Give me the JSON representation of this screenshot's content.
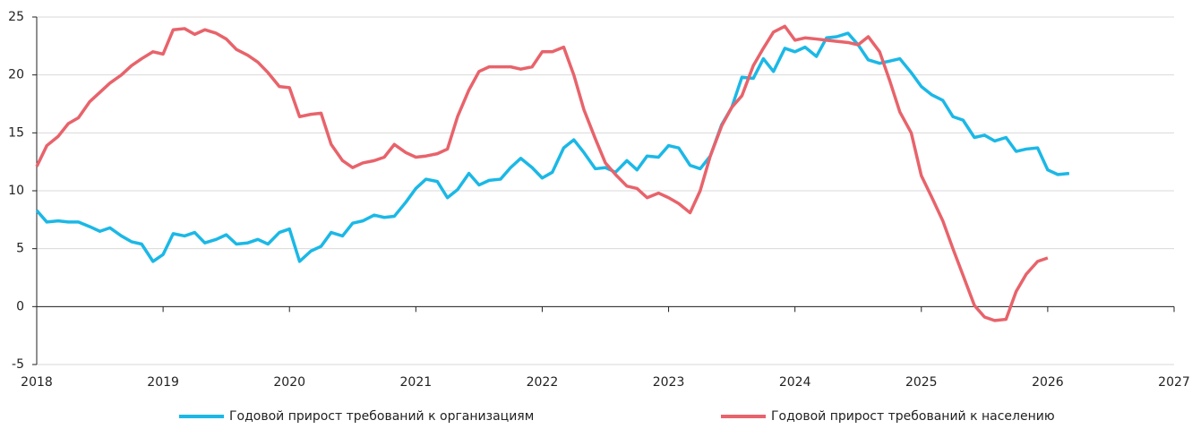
{
  "chart_data": {
    "type": "line",
    "xlim": [
      2018,
      2027
    ],
    "xticks": [
      2018,
      2019,
      2020,
      2021,
      2022,
      2023,
      2024,
      2025,
      2026,
      2027
    ],
    "ylim": [
      -5,
      25
    ],
    "yticks": [
      -5,
      0,
      5,
      10,
      15,
      20,
      25
    ],
    "grid": true,
    "legend": "bottom",
    "series": [
      {
        "name": "Годовой прирост требований к организациям",
        "color": "#1bb8e6",
        "x": [
          2018,
          2018.08,
          2018.17,
          2018.25,
          2018.33,
          2018.42,
          2018.5,
          2018.58,
          2018.67,
          2018.75,
          2018.83,
          2018.92,
          2019,
          2019.08,
          2019.17,
          2019.25,
          2019.33,
          2019.42,
          2019.5,
          2019.58,
          2019.67,
          2019.75,
          2019.83,
          2019.92,
          2020,
          2020.08,
          2020.17,
          2020.25,
          2020.33,
          2020.42,
          2020.5,
          2020.58,
          2020.67,
          2020.75,
          2020.83,
          2020.92,
          2021,
          2021.08,
          2021.17,
          2021.25,
          2021.33,
          2021.42,
          2021.5,
          2021.58,
          2021.67,
          2021.75,
          2021.83,
          2021.92,
          2022,
          2022.08,
          2022.17,
          2022.25,
          2022.33,
          2022.42,
          2022.5,
          2022.58,
          2022.67,
          2022.75,
          2022.83,
          2022.92,
          2023,
          2023.08,
          2023.17,
          2023.25,
          2023.33,
          2023.42,
          2023.5,
          2023.58,
          2023.67,
          2023.75,
          2023.83,
          2023.92,
          2024,
          2024.08,
          2024.17,
          2024.25,
          2024.33,
          2024.42,
          2024.5,
          2024.58,
          2024.67,
          2024.75,
          2024.83,
          2024.92,
          2025,
          2025.08,
          2025.17,
          2025.25,
          2025.33,
          2025.42,
          2025.5,
          2025.58,
          2025.67,
          2025.75,
          2025.83,
          2025.92,
          2026,
          2026.08,
          2026.17
        ],
        "values": [
          8.3,
          7.3,
          7.4,
          7.3,
          7.3,
          6.9,
          6.5,
          6.8,
          6.1,
          5.6,
          5.4,
          3.9,
          4.5,
          6.3,
          6.1,
          6.4,
          5.5,
          5.8,
          6.2,
          5.4,
          5.5,
          5.8,
          5.4,
          6.4,
          6.7,
          3.9,
          4.8,
          5.2,
          6.4,
          6.1,
          7.2,
          7.4,
          7.9,
          7.7,
          7.8,
          9.0,
          10.2,
          11.0,
          10.8,
          9.4,
          10.1,
          11.5,
          10.5,
          10.9,
          11.0,
          12.0,
          12.8,
          12.0,
          11.1,
          11.6,
          13.7,
          14.4,
          13.3,
          11.9,
          12.0,
          11.6,
          12.6,
          11.8,
          13.0,
          12.9,
          13.9,
          13.7,
          12.2,
          11.9,
          13.0,
          15.7,
          17.2,
          19.8,
          19.7,
          21.4,
          20.3,
          22.3,
          22.0,
          22.4,
          21.6,
          23.2,
          23.3,
          23.6,
          22.6,
          21.3,
          21.0,
          21.2,
          21.4,
          20.2,
          19.0,
          18.3,
          17.8,
          16.4,
          16.1,
          14.6,
          14.8,
          14.3,
          14.6,
          13.4,
          13.6,
          13.7,
          11.8,
          11.4,
          11.5
        ]
      },
      {
        "name": "Годовой прирост требований к населению",
        "color": "#e8636b",
        "x": [
          2018,
          2018.08,
          2018.17,
          2018.25,
          2018.33,
          2018.42,
          2018.5,
          2018.58,
          2018.67,
          2018.75,
          2018.83,
          2018.92,
          2019,
          2019.08,
          2019.17,
          2019.25,
          2019.33,
          2019.42,
          2019.5,
          2019.58,
          2019.67,
          2019.75,
          2019.83,
          2019.92,
          2020,
          2020.08,
          2020.17,
          2020.25,
          2020.33,
          2020.42,
          2020.5,
          2020.58,
          2020.67,
          2020.75,
          2020.83,
          2020.92,
          2021,
          2021.08,
          2021.17,
          2021.25,
          2021.33,
          2021.42,
          2021.5,
          2021.58,
          2021.67,
          2021.75,
          2021.83,
          2021.92,
          2022,
          2022.08,
          2022.17,
          2022.25,
          2022.33,
          2022.42,
          2022.5,
          2022.58,
          2022.67,
          2022.75,
          2022.83,
          2022.92,
          2023,
          2023.08,
          2023.17,
          2023.25,
          2023.33,
          2023.42,
          2023.5,
          2023.58,
          2023.67,
          2023.75,
          2023.83,
          2023.92,
          2024,
          2024.08,
          2024.17,
          2024.25,
          2024.33,
          2024.42,
          2024.5,
          2024.58,
          2024.67,
          2024.75,
          2024.83,
          2024.92,
          2025,
          2025.08,
          2025.17,
          2025.25,
          2025.33,
          2025.42,
          2025.5,
          2025.58,
          2025.67,
          2025.75,
          2025.83,
          2025.92,
          2026
        ],
        "values": [
          12.1,
          13.9,
          14.7,
          15.8,
          16.3,
          17.7,
          18.5,
          19.3,
          20.0,
          20.8,
          21.4,
          22.0,
          21.8,
          23.9,
          24.0,
          23.5,
          23.9,
          23.6,
          23.1,
          22.2,
          21.7,
          21.1,
          20.2,
          19.0,
          18.9,
          16.4,
          16.6,
          16.7,
          14.0,
          12.6,
          12.0,
          12.4,
          12.6,
          12.9,
          14.0,
          13.3,
          12.9,
          13.0,
          13.2,
          13.6,
          16.4,
          18.7,
          20.3,
          20.7,
          20.7,
          20.7,
          20.5,
          20.7,
          22.0,
          22.0,
          22.4,
          20.0,
          17.0,
          14.5,
          12.4,
          11.4,
          10.4,
          10.2,
          9.4,
          9.8,
          9.4,
          8.9,
          8.1,
          10.0,
          13.0,
          15.6,
          17.2,
          18.2,
          20.8,
          22.3,
          23.7,
          24.2,
          23.0,
          23.2,
          23.1,
          23.0,
          22.9,
          22.8,
          22.6,
          23.3,
          22.0,
          19.5,
          16.8,
          15.0,
          11.3,
          9.5,
          7.4,
          5.0,
          2.7,
          0.1,
          -0.9,
          -1.2,
          -1.1,
          1.3,
          2.8,
          3.9,
          4.2
        ]
      }
    ]
  }
}
